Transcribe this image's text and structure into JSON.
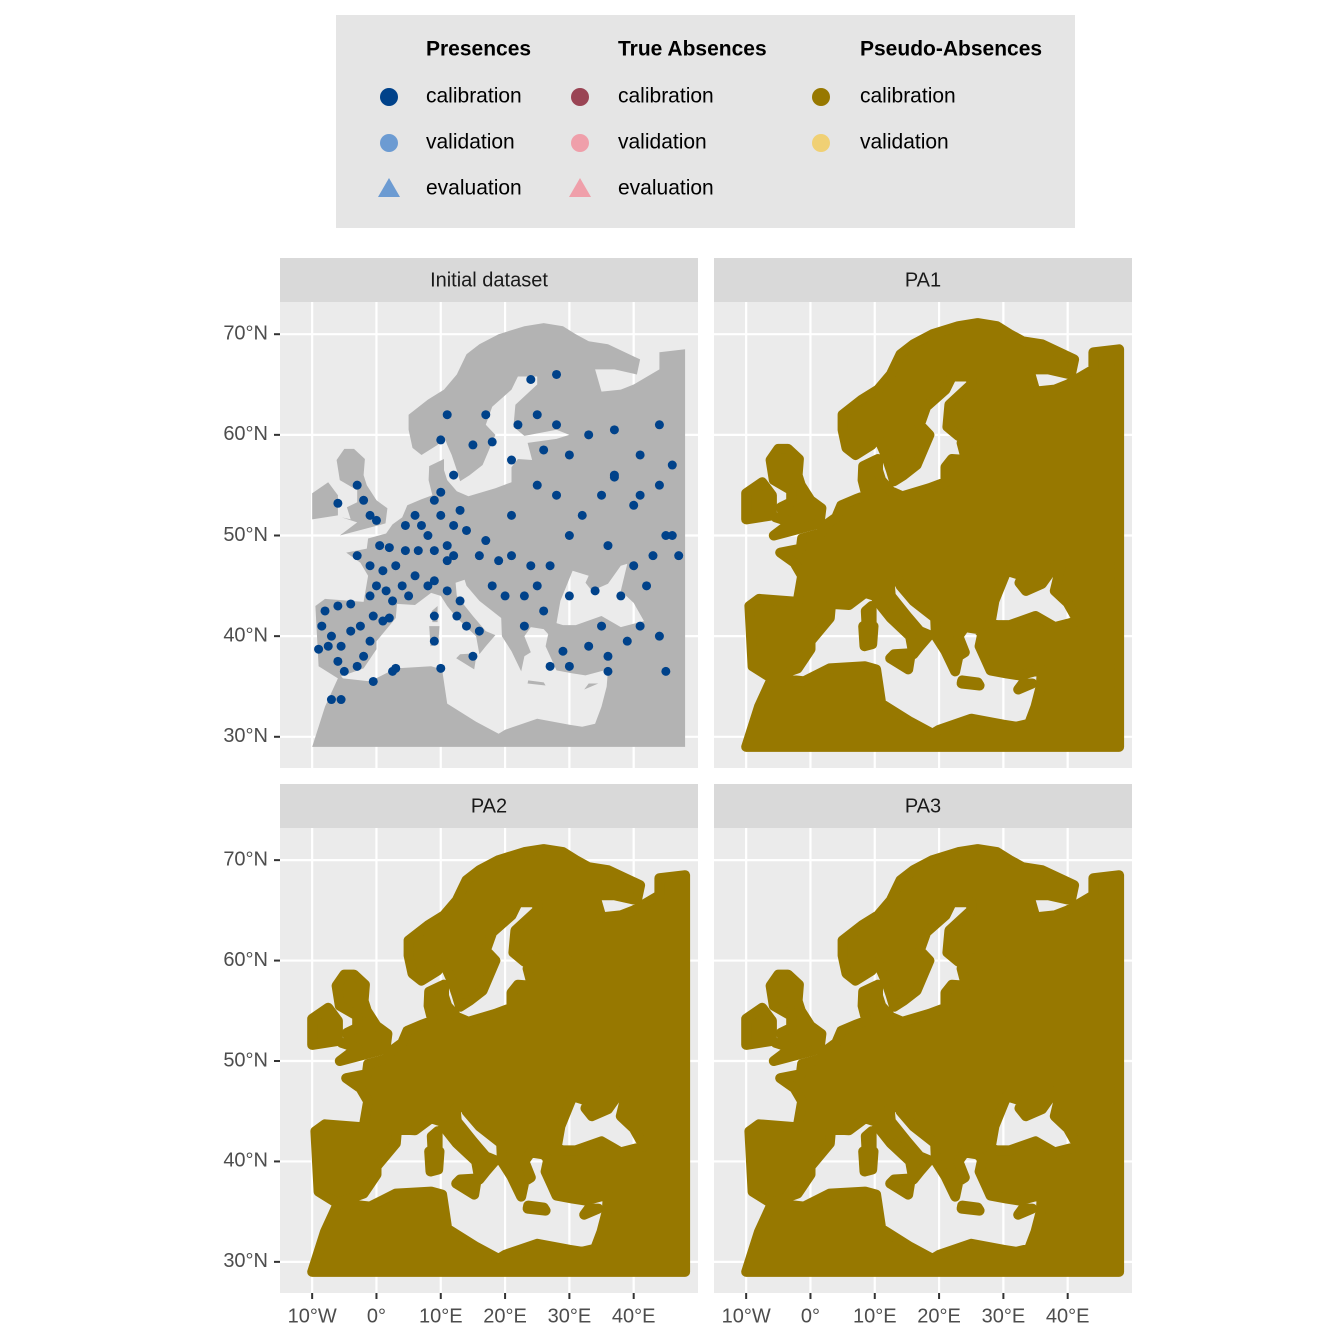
{
  "chart_data": {
    "type": "scatter",
    "legend": {
      "groups": [
        {
          "title": "Presences",
          "items": [
            {
              "name": "calibration",
              "color": "#00428a",
              "shape": "circle"
            },
            {
              "name": "validation",
              "color": "#6c9bd2",
              "shape": "circle"
            },
            {
              "name": "evaluation",
              "color": "#6c9bd2",
              "shape": "triangle"
            }
          ]
        },
        {
          "title": "True Absences",
          "items": [
            {
              "name": "calibration",
              "color": "#9a4454",
              "shape": "circle"
            },
            {
              "name": "validation",
              "color": "#ef9faa",
              "shape": "circle"
            },
            {
              "name": "evaluation",
              "color": "#ef9faa",
              "shape": "triangle"
            }
          ]
        },
        {
          "title": "Pseudo-Absences",
          "items": [
            {
              "name": "calibration",
              "color": "#977800",
              "shape": "circle"
            },
            {
              "name": "validation",
              "color": "#f0d074",
              "shape": "circle"
            }
          ]
        }
      ]
    },
    "panels": [
      {
        "title": "Initial dataset",
        "layer": "presences"
      },
      {
        "title": "PA1",
        "layer": "pseudo-absences"
      },
      {
        "title": "PA2",
        "layer": "pseudo-absences"
      },
      {
        "title": "PA3",
        "layer": "pseudo-absences"
      }
    ],
    "xlim": [
      -15,
      50
    ],
    "ylim": [
      26.9,
      73.2
    ],
    "xticks": [
      {
        "value": -10,
        "label": "10°W"
      },
      {
        "value": 0,
        "label": "0°"
      },
      {
        "value": 10,
        "label": "10°E"
      },
      {
        "value": 20,
        "label": "20°E"
      },
      {
        "value": 30,
        "label": "30°E"
      },
      {
        "value": 40,
        "label": "40°E"
      }
    ],
    "yticks": [
      {
        "value": 30,
        "label": "30°N"
      },
      {
        "value": 40,
        "label": "40°N"
      },
      {
        "value": 50,
        "label": "50°N"
      },
      {
        "value": 60,
        "label": "60°N"
      },
      {
        "value": 70,
        "label": "70°N"
      }
    ],
    "grid": true,
    "points": {
      "x": [
        -9,
        -8.5,
        -8,
        -7,
        -6,
        -5,
        -4,
        -3,
        -2,
        -1,
        -0.5,
        1,
        2,
        -6,
        -4,
        -7.5,
        -5.5,
        -2.5,
        -5.5,
        -7,
        -1,
        0,
        1,
        2,
        3,
        4,
        5,
        6,
        -3,
        0.5,
        2.5,
        4.5,
        6.5,
        1.5,
        -1,
        -1,
        0,
        -2,
        -3,
        -6,
        4.5,
        6,
        7,
        8,
        9,
        10,
        11,
        12,
        13,
        9,
        10,
        14,
        12,
        11,
        10,
        11,
        15,
        18,
        12,
        24,
        25,
        28,
        22,
        17,
        8,
        9,
        11,
        12.5,
        14,
        16,
        15,
        13,
        9,
        9,
        16,
        17,
        19,
        21,
        21,
        23,
        25,
        26,
        23,
        20,
        18,
        24,
        27,
        30,
        32,
        35,
        28,
        25,
        37,
        40,
        44,
        46,
        45,
        43,
        47,
        40,
        36,
        38,
        42,
        30,
        33,
        37,
        41,
        44,
        37,
        34,
        27,
        30,
        33,
        29,
        35,
        36,
        39,
        44,
        41,
        30,
        3,
        -0.5,
        10,
        2.5,
        36,
        45,
        41,
        46,
        28,
        21,
        26
      ],
      "y": [
        38.7,
        41,
        42.5,
        40,
        37.5,
        36.5,
        40.5,
        37,
        38,
        39.5,
        42,
        41.5,
        41.8,
        43,
        43.2,
        39,
        39,
        41,
        33.7,
        33.7,
        47,
        45,
        46.5,
        48.8,
        47,
        45,
        44,
        46,
        48,
        49,
        43.5,
        48.5,
        48.5,
        44.5,
        44,
        52,
        51.5,
        53.5,
        55,
        53.2,
        51,
        52,
        51,
        50,
        48.5,
        52,
        49,
        51,
        52.5,
        53.5,
        54.3,
        50.5,
        48,
        47.5,
        59.5,
        62,
        59,
        59.3,
        56,
        65.5,
        62,
        61,
        61,
        62,
        45,
        45.5,
        44.5,
        42,
        41,
        40.5,
        38,
        43.5,
        39.5,
        42,
        48,
        49.5,
        47.5,
        52,
        48,
        44,
        45,
        42.5,
        41,
        44,
        45,
        47,
        47,
        50,
        52,
        54,
        54,
        55,
        55.8,
        53,
        55,
        57,
        50,
        48,
        48,
        47,
        49,
        44,
        45,
        58,
        60,
        56,
        58,
        61,
        60.5,
        44.5,
        37,
        37,
        39,
        38.5,
        41,
        38,
        39.5,
        40,
        41,
        44,
        36.8,
        35.5,
        36.8,
        36.5,
        36.5,
        36.5,
        54,
        50,
        66,
        57.5,
        58.5
      ]
    }
  }
}
